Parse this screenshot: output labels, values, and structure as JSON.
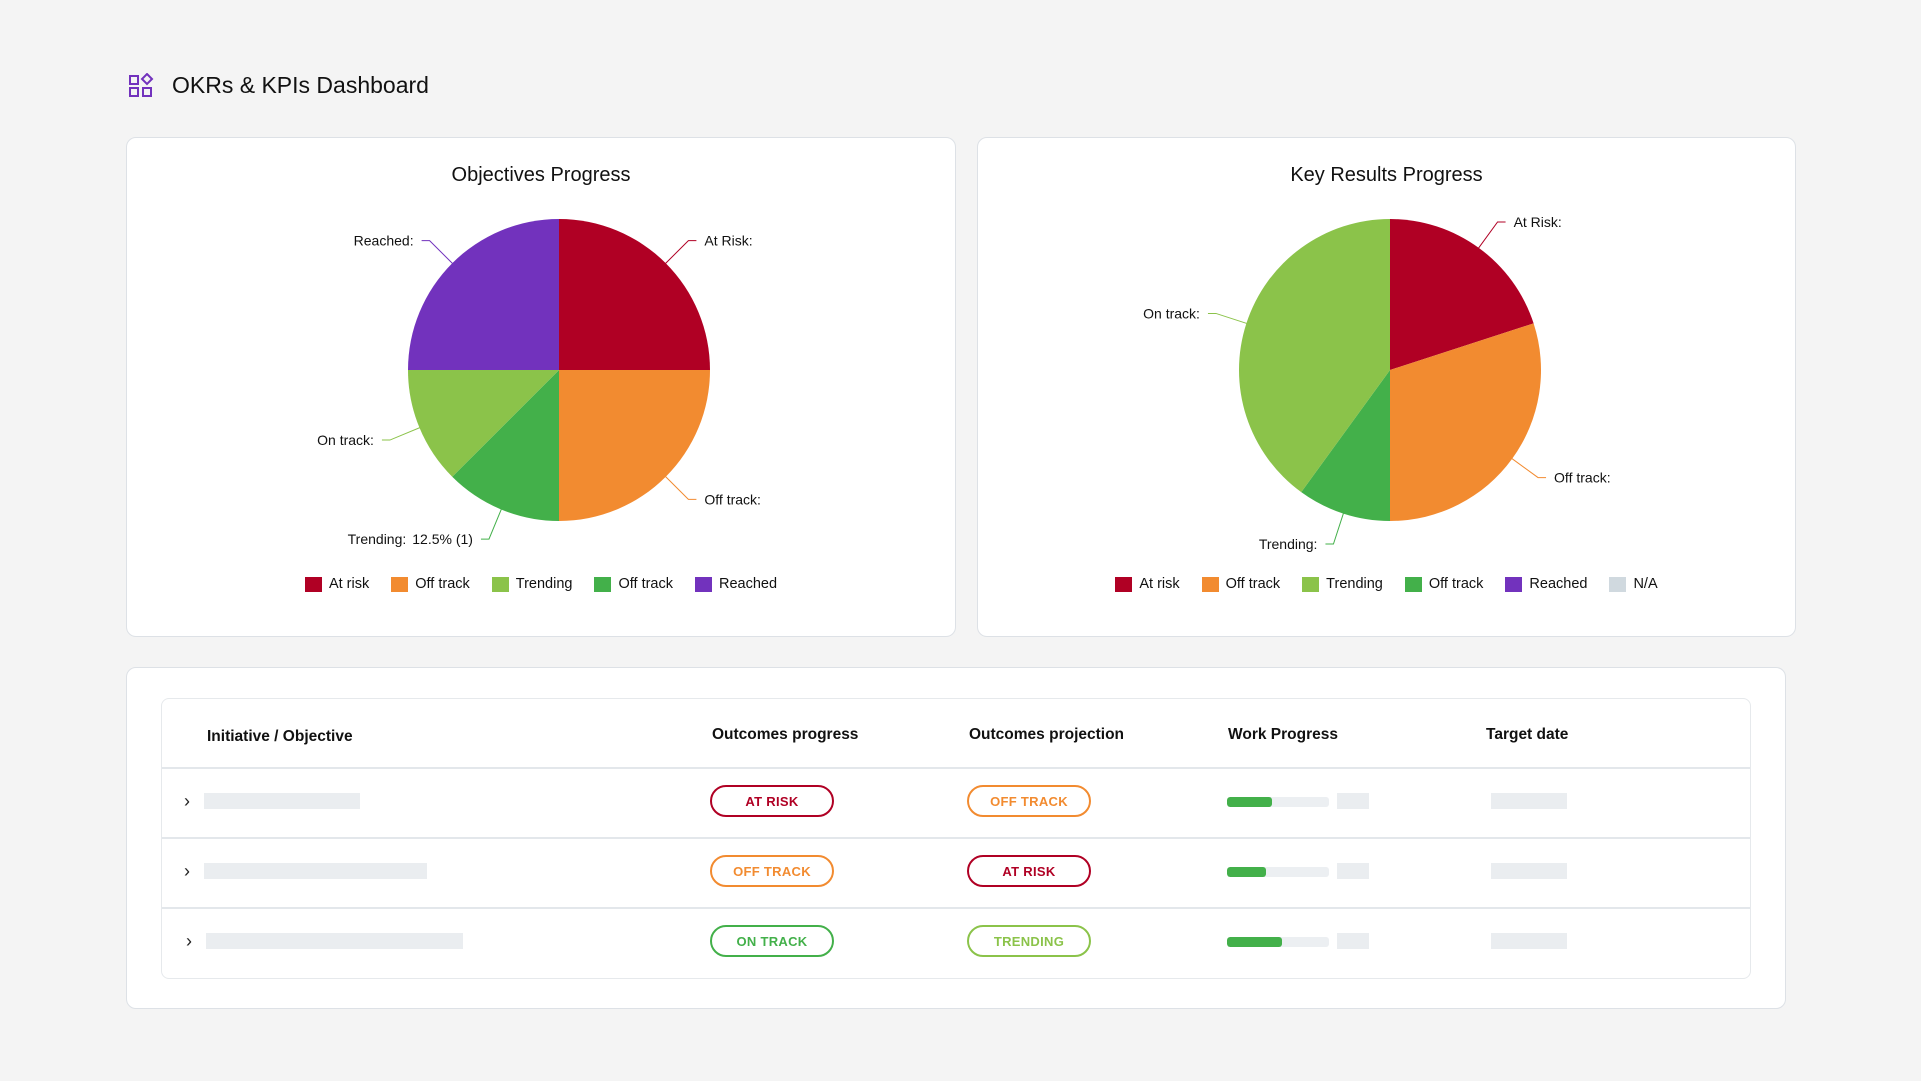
{
  "header": {
    "title": "OKRs & KPIs Dashboard",
    "icon": "dashboard-grid-icon",
    "icon_color": "#7232bd"
  },
  "chart_data": [
    {
      "type": "pie",
      "title": "Objectives Progress",
      "slices": [
        {
          "label": "At Risk:",
          "value": 2,
          "color": "#b00024"
        },
        {
          "label": "Off track:",
          "value": 2,
          "color": "#f28b30"
        },
        {
          "label": "Trending:",
          "value_label": "12.5% (1)",
          "value": 1,
          "color": "#43b04a"
        },
        {
          "label": "On track:",
          "value": 1,
          "color": "#8bc34a"
        },
        {
          "label": "Reached:",
          "value": 2,
          "color": "#7232bd"
        }
      ],
      "legend": [
        {
          "label": "At risk",
          "color": "#b00024"
        },
        {
          "label": "Off track",
          "color": "#f28b30"
        },
        {
          "label": "Trending",
          "color": "#8bc34a"
        },
        {
          "label": "Off track",
          "color": "#43b04a"
        },
        {
          "label": "Reached",
          "color": "#7232bd"
        }
      ],
      "legend_position": "bottom"
    },
    {
      "type": "pie",
      "title": "Key Results Progress",
      "slices": [
        {
          "label": "At Risk:",
          "value": 20,
          "color": "#b00024"
        },
        {
          "label": "Off track:",
          "value": 30,
          "color": "#f28b30"
        },
        {
          "label": "Trending:",
          "value": 10,
          "color": "#43b04a"
        },
        {
          "label": "On track:",
          "value": 40,
          "color": "#8bc34a"
        }
      ],
      "legend": [
        {
          "label": "At risk",
          "color": "#b00024"
        },
        {
          "label": "Off track",
          "color": "#f28b30"
        },
        {
          "label": "Trending",
          "color": "#8bc34a"
        },
        {
          "label": "Off track",
          "color": "#43b04a"
        },
        {
          "label": "Reached",
          "color": "#7232bd"
        },
        {
          "label": "N/A",
          "color": "#d0d9df"
        }
      ],
      "legend_position": "bottom"
    }
  ],
  "table": {
    "columns": [
      "Initiative / Objective",
      "Outcomes progress",
      "Outcomes projection",
      "Work Progress",
      "Target date"
    ],
    "rows": [
      {
        "progress": {
          "label": "AT RISK",
          "color": "#b00024"
        },
        "projection": {
          "label": "OFF TRACK",
          "color": "#f28b30"
        },
        "work_progress": 0.44
      },
      {
        "progress": {
          "label": "OFF TRACK",
          "color": "#f28b30"
        },
        "projection": {
          "label": "AT RISK",
          "color": "#b00024"
        },
        "work_progress": 0.38
      },
      {
        "progress": {
          "label": "ON TRACK",
          "color": "#43b04a"
        },
        "projection": {
          "label": "TRENDING",
          "color": "#8bc34a"
        },
        "work_progress": 0.54
      }
    ]
  }
}
